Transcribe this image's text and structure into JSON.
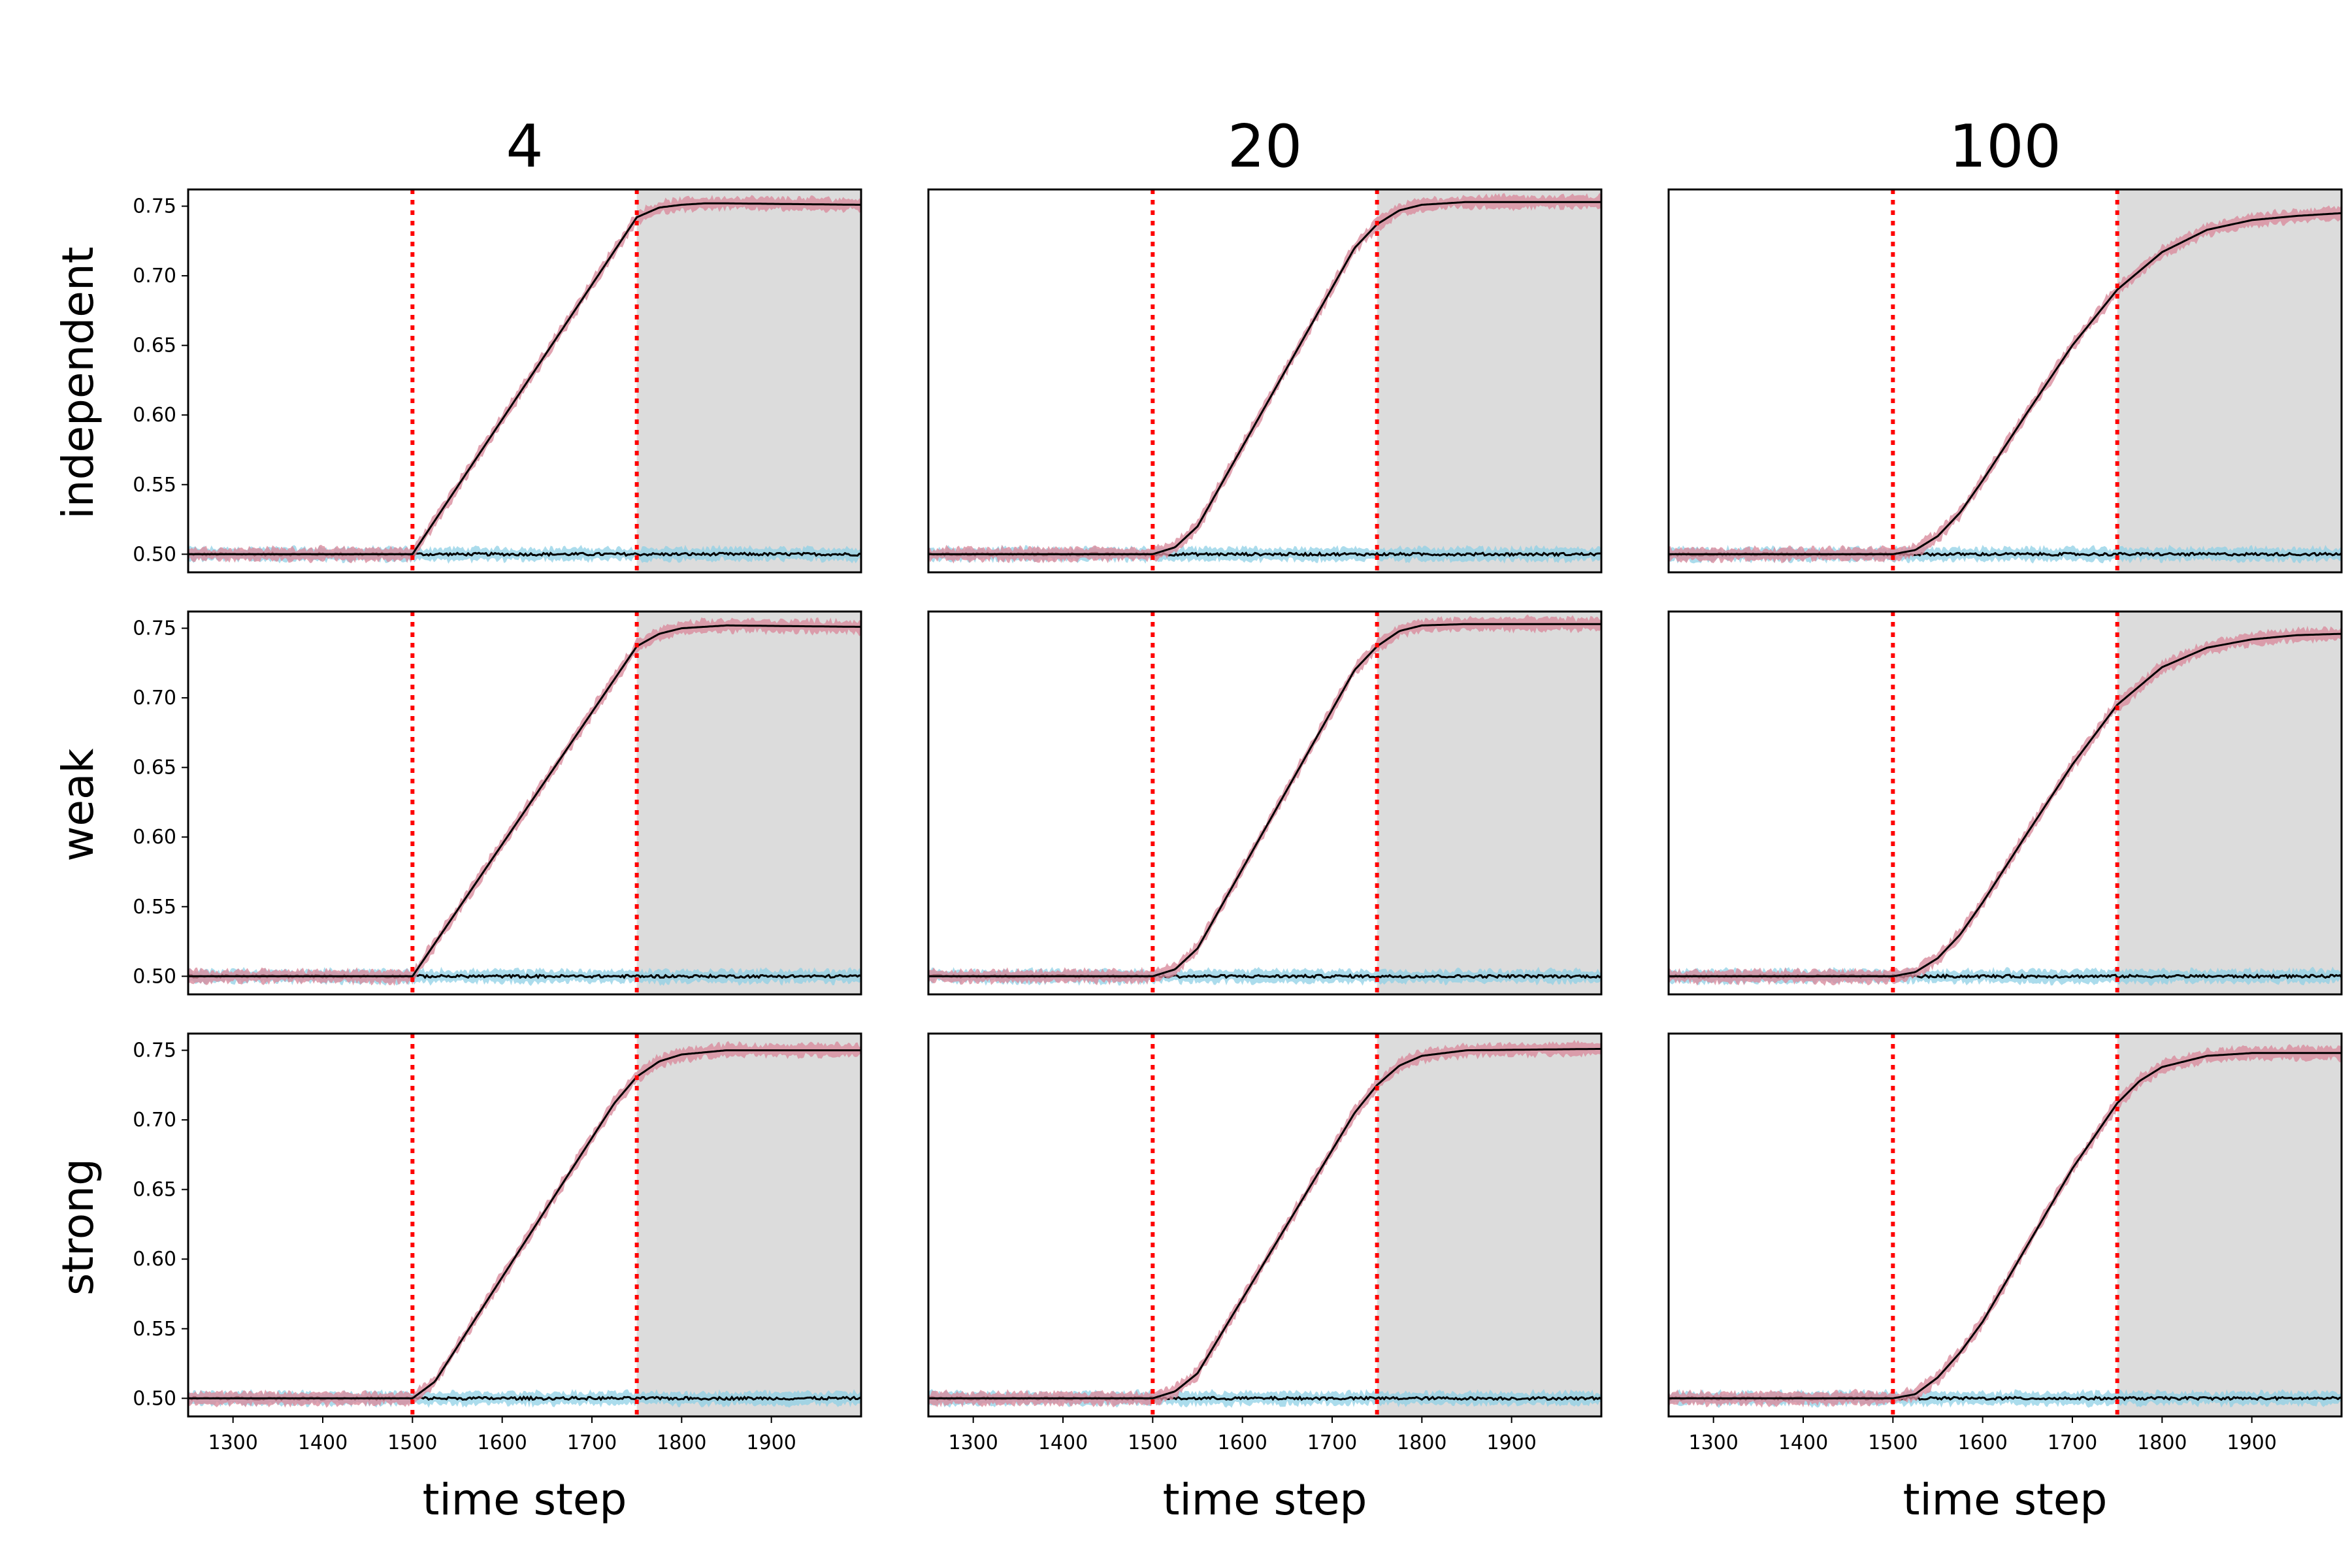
{
  "figure": {
    "column_titles": [
      "4",
      "20",
      "100"
    ],
    "row_labels": [
      "independent",
      "weak",
      "strong"
    ],
    "xlabel": "time step",
    "colors": {
      "upper_band": "#d98c9e",
      "lower_band": "#8fd0e6",
      "mean_line": "#000000",
      "vline": "#ff0000",
      "shade": "#dcdcdc"
    }
  },
  "chart_data": {
    "type": "line",
    "grid": false,
    "legend": "none",
    "xlim": [
      1250,
      2000
    ],
    "ylim": [
      0.487,
      0.762
    ],
    "x_ticks": [
      1300,
      1400,
      1500,
      1600,
      1700,
      1800,
      1900
    ],
    "y_ticks": [
      0.5,
      0.55,
      0.6,
      0.65,
      0.7,
      0.75
    ],
    "y_tick_labels": [
      "0.50",
      "0.55",
      "0.60",
      "0.65",
      "0.70",
      "0.75"
    ],
    "vlines": [
      1500,
      1750
    ],
    "shaded_region": [
      1750,
      2000
    ],
    "baseline": 0.5,
    "panels": [
      {
        "row": "independent",
        "col": "4",
        "upper_curve": {
          "x": [
            1250,
            1500,
            1750,
            1775,
            1800,
            1825,
            1850,
            2000
          ],
          "y": [
            0.5,
            0.5,
            0.742,
            0.749,
            0.751,
            0.752,
            0.752,
            0.751
          ]
        }
      },
      {
        "row": "independent",
        "col": "20",
        "upper_curve": {
          "x": [
            1250,
            1500,
            1525,
            1550,
            1725,
            1750,
            1775,
            1800,
            1850,
            2000
          ],
          "y": [
            0.5,
            0.5,
            0.505,
            0.52,
            0.72,
            0.737,
            0.747,
            0.751,
            0.753,
            0.753
          ]
        }
      },
      {
        "row": "independent",
        "col": "100",
        "upper_curve": {
          "x": [
            1250,
            1500,
            1525,
            1550,
            1575,
            1600,
            1650,
            1700,
            1750,
            1800,
            1850,
            1900,
            1950,
            2000
          ],
          "y": [
            0.5,
            0.5,
            0.503,
            0.513,
            0.53,
            0.553,
            0.602,
            0.65,
            0.69,
            0.717,
            0.733,
            0.74,
            0.743,
            0.745
          ]
        }
      },
      {
        "row": "weak",
        "col": "4",
        "upper_curve": {
          "x": [
            1250,
            1500,
            1750,
            1775,
            1800,
            1850,
            2000
          ],
          "y": [
            0.5,
            0.5,
            0.737,
            0.746,
            0.75,
            0.752,
            0.751
          ]
        }
      },
      {
        "row": "weak",
        "col": "20",
        "upper_curve": {
          "x": [
            1250,
            1500,
            1525,
            1550,
            1725,
            1750,
            1775,
            1800,
            1850,
            2000
          ],
          "y": [
            0.5,
            0.5,
            0.505,
            0.52,
            0.72,
            0.737,
            0.748,
            0.752,
            0.753,
            0.753
          ]
        }
      },
      {
        "row": "weak",
        "col": "100",
        "upper_curve": {
          "x": [
            1250,
            1500,
            1525,
            1550,
            1575,
            1600,
            1650,
            1700,
            1750,
            1800,
            1850,
            1900,
            1950,
            2000
          ],
          "y": [
            0.5,
            0.5,
            0.503,
            0.513,
            0.53,
            0.553,
            0.603,
            0.652,
            0.695,
            0.722,
            0.736,
            0.742,
            0.745,
            0.746
          ]
        }
      },
      {
        "row": "strong",
        "col": "4",
        "upper_curve": {
          "x": [
            1250,
            1500,
            1525,
            1725,
            1750,
            1775,
            1800,
            1850,
            2000
          ],
          "y": [
            0.5,
            0.5,
            0.512,
            0.712,
            0.731,
            0.742,
            0.747,
            0.75,
            0.75
          ]
        }
      },
      {
        "row": "strong",
        "col": "20",
        "upper_curve": {
          "x": [
            1250,
            1500,
            1525,
            1550,
            1725,
            1750,
            1775,
            1800,
            1850,
            2000
          ],
          "y": [
            0.5,
            0.5,
            0.505,
            0.518,
            0.705,
            0.725,
            0.739,
            0.746,
            0.75,
            0.751
          ]
        }
      },
      {
        "row": "strong",
        "col": "100",
        "upper_curve": {
          "x": [
            1250,
            1500,
            1525,
            1550,
            1575,
            1600,
            1650,
            1700,
            1750,
            1775,
            1800,
            1850,
            1900,
            2000
          ],
          "y": [
            0.5,
            0.5,
            0.503,
            0.515,
            0.533,
            0.555,
            0.61,
            0.665,
            0.712,
            0.728,
            0.738,
            0.746,
            0.748,
            0.748
          ]
        }
      }
    ]
  }
}
